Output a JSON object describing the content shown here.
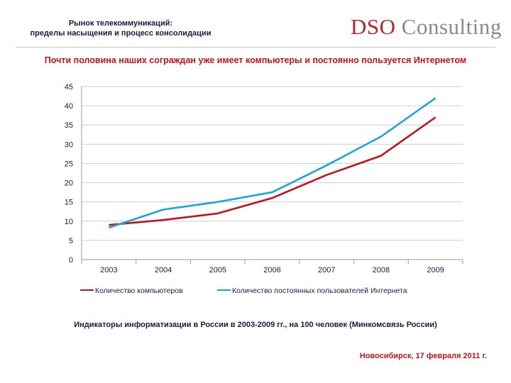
{
  "header": {
    "title_line1": "Рынок телекоммуникаций:",
    "title_line2": "пределы насыщения и процесс консолидации",
    "logo_part1": "DSO",
    "logo_part2": "Consulting"
  },
  "headline": "Почти половина наших сограждан уже имеет компьютеры и постоянно пользуется Интернетом",
  "chart_data": {
    "type": "line",
    "title": "",
    "x": [
      "2003",
      "2004",
      "2005",
      "2006",
      "2007",
      "2008",
      "2009"
    ],
    "ylim": [
      0,
      45
    ],
    "yticks": [
      0,
      5,
      10,
      15,
      20,
      25,
      30,
      35,
      40,
      45
    ],
    "grid": true,
    "legend_position": "bottom",
    "series": [
      {
        "name": "Количество компьютеров",
        "color": "#c0141d",
        "values": [
          9,
          10.3,
          12,
          16,
          22,
          27,
          37
        ]
      },
      {
        "name": "Количество постоянных пользователей Интернета",
        "color": "#1aa7d8",
        "values": [
          8.3,
          13,
          15,
          17.5,
          24.5,
          32,
          42
        ]
      }
    ]
  },
  "caption": "Индикаторы информатизации в России в 2003-2009 гг., на 100 человек (Минкомсвязь России)",
  "footer": "Новосибирск, 17 февраля 2011 г."
}
